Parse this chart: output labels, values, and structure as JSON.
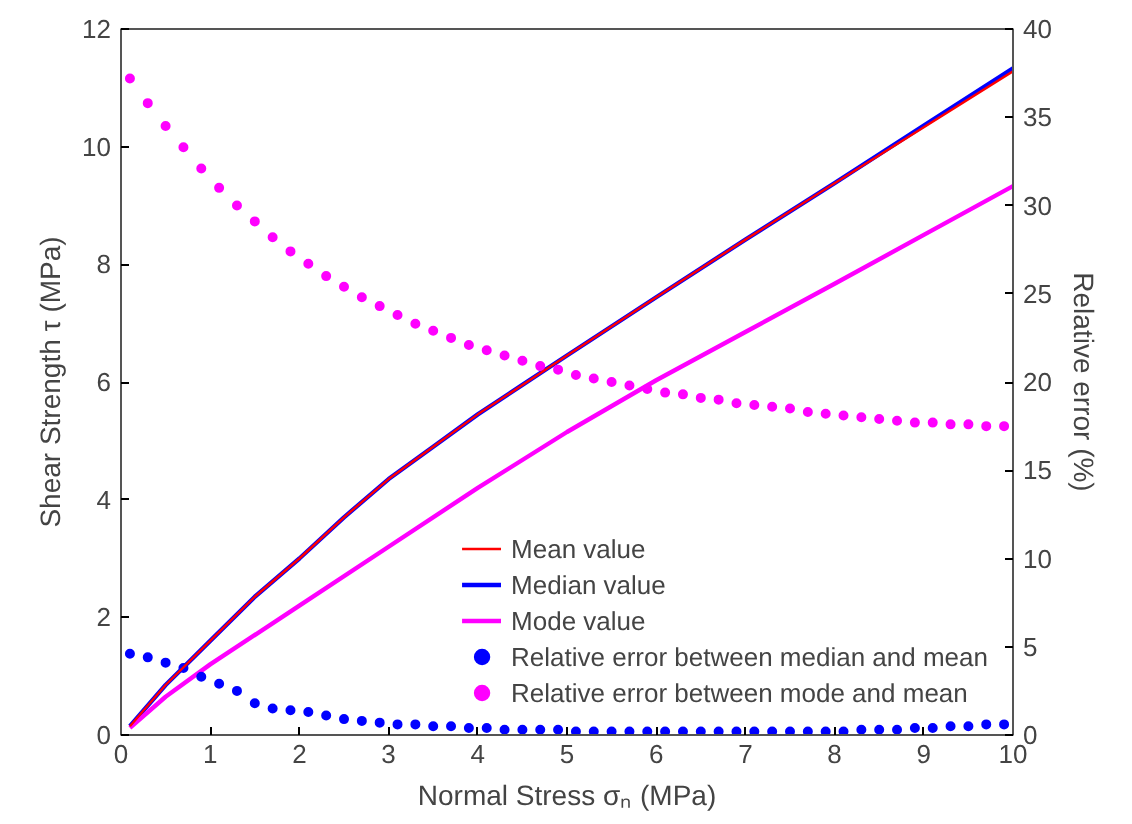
{
  "chart_data": {
    "type": "line",
    "xlabel": "Normal Stress σₙ (MPa)",
    "ylabel": "Shear Strength τ (MPa)",
    "y2label": "Relative error (%)",
    "xlim": [
      0,
      10
    ],
    "xticks": [
      0,
      1,
      2,
      3,
      4,
      5,
      6,
      7,
      8,
      9,
      10
    ],
    "ylim": [
      0,
      12
    ],
    "yticks": [
      0,
      2,
      4,
      6,
      8,
      10,
      12
    ],
    "y2lim": [
      0,
      40
    ],
    "y2ticks": [
      0,
      5,
      10,
      15,
      20,
      25,
      30,
      35,
      40
    ],
    "grid": false,
    "legend": "bottom right",
    "series": [
      {
        "name": "Mean value",
        "color": "#ff0000",
        "x": [
          0.1,
          0.5,
          1,
          1.5,
          2,
          2.5,
          3,
          3.5,
          4,
          4.5,
          5,
          6,
          7,
          8,
          9,
          10
        ],
        "values": [
          0.15,
          0.85,
          1.6,
          2.35,
          3.0,
          3.7,
          4.35,
          4.9,
          5.45,
          5.95,
          6.45,
          7.44,
          8.42,
          9.38,
          10.33,
          11.28
        ]
      },
      {
        "name": "Median value",
        "color": "#0000ff",
        "x": [
          0.1,
          0.5,
          1,
          1.5,
          2,
          2.5,
          3,
          3.5,
          4,
          4.5,
          5,
          6,
          7,
          8,
          9,
          10
        ],
        "values": [
          0.15,
          0.85,
          1.6,
          2.35,
          3.0,
          3.7,
          4.35,
          4.9,
          5.45,
          5.95,
          6.45,
          7.44,
          8.42,
          9.38,
          10.36,
          11.33
        ]
      },
      {
        "name": "Mode value",
        "color": "#ff00ff",
        "x": [
          0.1,
          0.5,
          1,
          2,
          3,
          4,
          5,
          6,
          7,
          8,
          9,
          10
        ],
        "values": [
          0.12,
          0.65,
          1.2,
          2.2,
          3.2,
          4.2,
          5.15,
          6.03,
          6.85,
          7.67,
          8.5,
          9.33
        ]
      },
      {
        "name": "Relative error between median and mean",
        "type": "scatter",
        "marker": "circle",
        "axis": "y2",
        "color": "#0000ff",
        "x": [
          0.1,
          0.3,
          0.5,
          0.7,
          0.9,
          1.1,
          1.3,
          1.5,
          1.7,
          1.9,
          2.1,
          2.3,
          2.5,
          2.7,
          2.9,
          3.1,
          3.3,
          3.5,
          3.7,
          3.9,
          4.1,
          4.3,
          4.5,
          4.7,
          4.9,
          5.1,
          5.3,
          5.5,
          5.7,
          5.9,
          6.1,
          6.3,
          6.5,
          6.7,
          6.9,
          7.1,
          7.3,
          7.5,
          7.7,
          7.9,
          8.1,
          8.3,
          8.5,
          8.7,
          8.9,
          9.1,
          9.3,
          9.5,
          9.7,
          9.9
        ],
        "values": [
          4.6,
          4.4,
          4.1,
          3.8,
          3.3,
          2.9,
          2.5,
          1.8,
          1.5,
          1.4,
          1.3,
          1.1,
          0.9,
          0.8,
          0.7,
          0.6,
          0.6,
          0.5,
          0.5,
          0.4,
          0.4,
          0.3,
          0.3,
          0.3,
          0.3,
          0.2,
          0.2,
          0.2,
          0.2,
          0.2,
          0.2,
          0.2,
          0.2,
          0.2,
          0.2,
          0.2,
          0.2,
          0.2,
          0.2,
          0.2,
          0.2,
          0.3,
          0.3,
          0.3,
          0.4,
          0.4,
          0.5,
          0.5,
          0.6,
          0.6
        ]
      },
      {
        "name": "Relative error between mode and mean",
        "type": "scatter",
        "marker": "circle",
        "axis": "y2",
        "color": "#ff00ff",
        "x": [
          0.1,
          0.3,
          0.5,
          0.7,
          0.9,
          1.1,
          1.3,
          1.5,
          1.7,
          1.9,
          2.1,
          2.3,
          2.5,
          2.7,
          2.9,
          3.1,
          3.3,
          3.5,
          3.7,
          3.9,
          4.1,
          4.3,
          4.5,
          4.7,
          4.9,
          5.1,
          5.3,
          5.5,
          5.7,
          5.9,
          6.1,
          6.3,
          6.5,
          6.7,
          6.9,
          7.1,
          7.3,
          7.5,
          7.7,
          7.9,
          8.1,
          8.3,
          8.5,
          8.7,
          8.9,
          9.1,
          9.3,
          9.5,
          9.7,
          9.9
        ],
        "values": [
          37.2,
          35.8,
          34.5,
          33.3,
          32.1,
          31.0,
          30.0,
          29.1,
          28.2,
          27.4,
          26.7,
          26.0,
          25.4,
          24.8,
          24.3,
          23.8,
          23.3,
          22.9,
          22.5,
          22.1,
          21.8,
          21.5,
          21.2,
          20.9,
          20.7,
          20.4,
          20.2,
          20.0,
          19.8,
          19.6,
          19.4,
          19.3,
          19.1,
          19.0,
          18.8,
          18.7,
          18.6,
          18.5,
          18.3,
          18.2,
          18.1,
          18.0,
          17.9,
          17.8,
          17.7,
          17.7,
          17.6,
          17.6,
          17.5,
          17.5
        ]
      }
    ]
  }
}
